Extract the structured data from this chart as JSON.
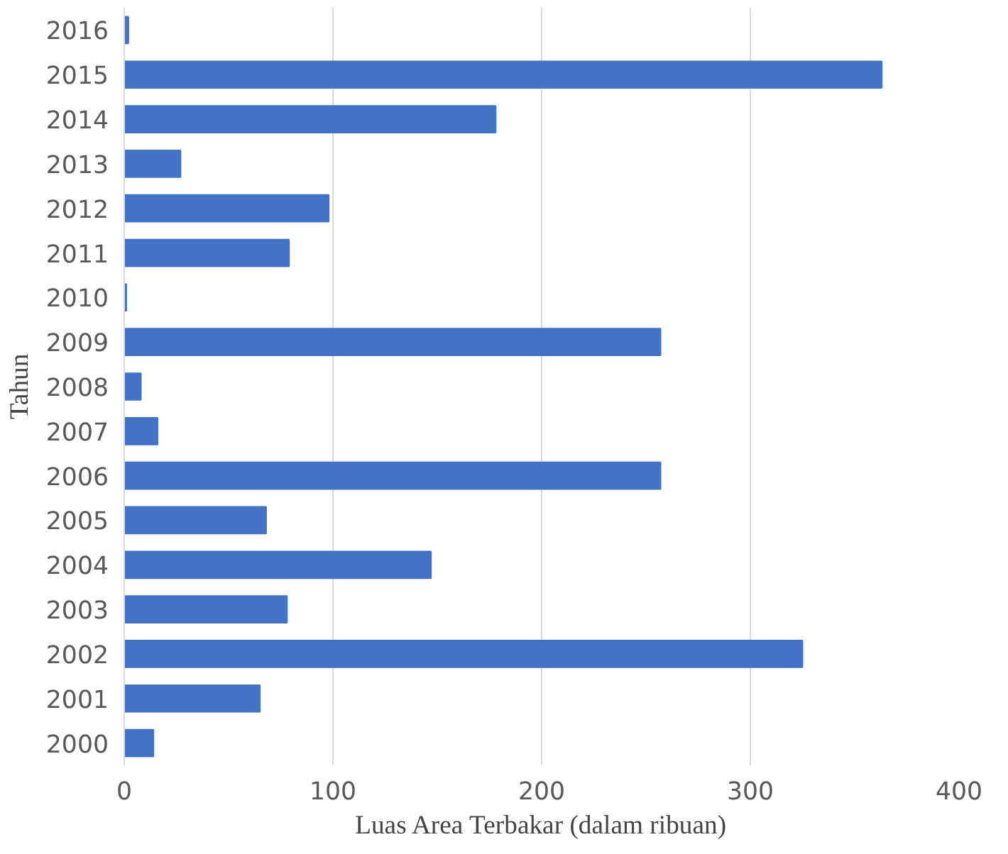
{
  "chart_data": {
    "type": "bar",
    "orientation": "horizontal",
    "xlabel": "Luas Area Terbakar (dalam ribuan)",
    "ylabel": "Tahun",
    "categories": [
      "2016",
      "2015",
      "2014",
      "2013",
      "2012",
      "2011",
      "2010",
      "2009",
      "2008",
      "2007",
      "2006",
      "2005",
      "2004",
      "2003",
      "2002",
      "2001",
      "2000"
    ],
    "values": [
      2,
      363,
      178,
      27,
      98,
      79,
      1,
      257,
      8,
      16,
      257,
      68,
      147,
      78,
      325,
      65,
      14
    ],
    "color": "#4472c4",
    "xlim": [
      0,
      400
    ],
    "xticks": [
      0,
      100,
      200,
      300,
      400
    ],
    "grid": "x"
  }
}
